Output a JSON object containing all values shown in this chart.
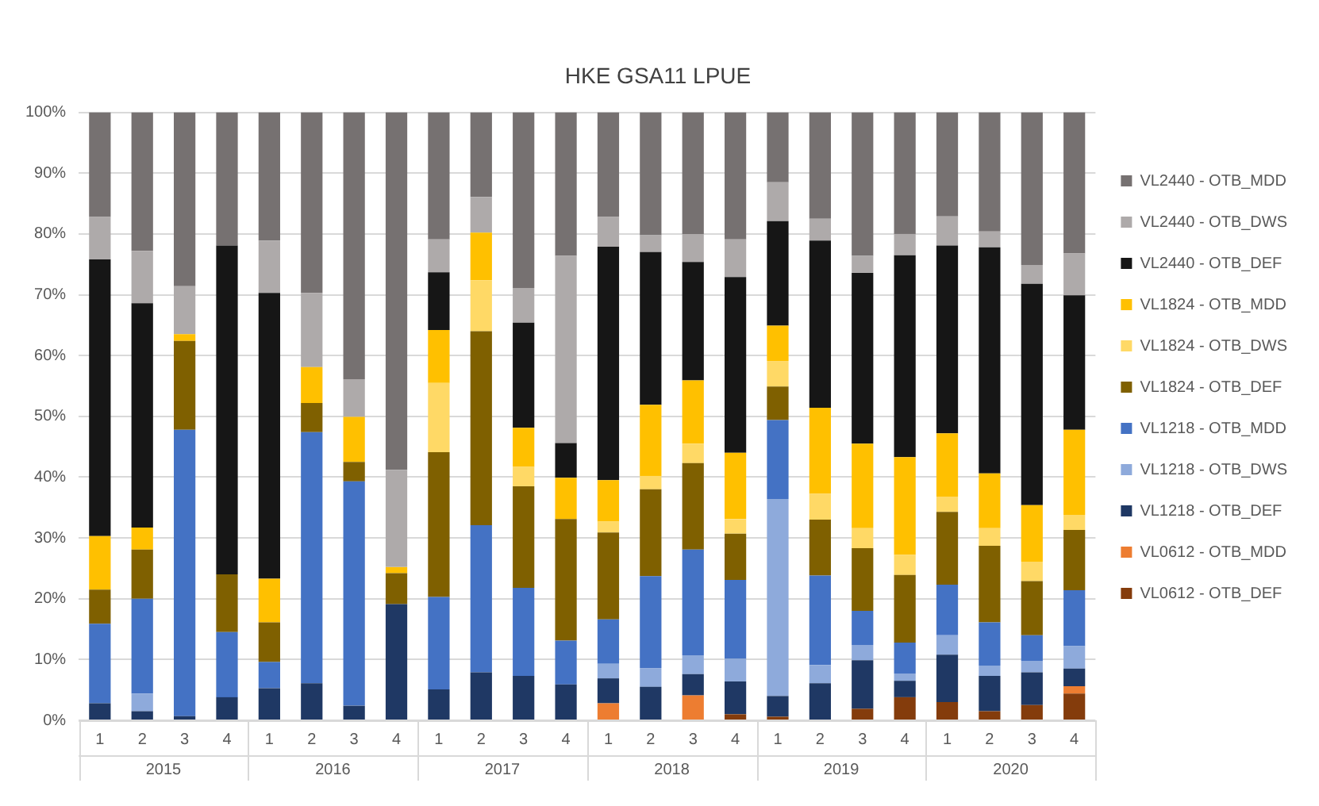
{
  "chart_data": {
    "type": "bar",
    "stacked": true,
    "title": "HKE GSA11 LPUE",
    "categories": [
      "1",
      "2",
      "3",
      "4",
      "1",
      "2",
      "3",
      "4",
      "1",
      "2",
      "3",
      "4",
      "1",
      "2",
      "3",
      "4",
      "1",
      "2",
      "3",
      "4",
      "1",
      "2",
      "3",
      "4"
    ],
    "annotations": [
      "2015",
      "2016",
      "2017",
      "2018",
      "2019",
      "2020"
    ],
    "ylim": [
      0,
      100
    ],
    "yticks": [
      {
        "value": 0,
        "label": "0%"
      },
      {
        "value": 10,
        "label": "10%"
      },
      {
        "value": 20,
        "label": "20%"
      },
      {
        "value": 30,
        "label": "30%"
      },
      {
        "value": 40,
        "label": "40%"
      },
      {
        "value": 50,
        "label": "50%"
      },
      {
        "value": 60,
        "label": "60%"
      },
      {
        "value": 70,
        "label": "70%"
      },
      {
        "value": 80,
        "label": "80%"
      },
      {
        "value": 90,
        "label": "90%"
      },
      {
        "value": 100,
        "label": "100%"
      }
    ],
    "grid": "y",
    "legend": "right",
    "series": [
      {
        "name": "VL0612 - OTB_DEF",
        "color": "#843c0c",
        "values": [
          0,
          0,
          0,
          0,
          0,
          0,
          0,
          0,
          0,
          0,
          0,
          0,
          0,
          0,
          0,
          1,
          0.6,
          0,
          1.9,
          3.8,
          3,
          1.5,
          2.5,
          4.4
        ]
      },
      {
        "name": "VL0612 - OTB_MDD",
        "color": "#ed7d31",
        "values": [
          0,
          0,
          0,
          0,
          0,
          0,
          0,
          0,
          0,
          0,
          0,
          0,
          2.8,
          0,
          4.1,
          0,
          0,
          0,
          0,
          0,
          0,
          0,
          0,
          1.2
        ]
      },
      {
        "name": "VL1218 - OTB_DEF",
        "color": "#1f3864",
        "values": [
          2.8,
          1.5,
          0.7,
          3.8,
          5.3,
          6.1,
          2.4,
          19.1,
          5.1,
          7.9,
          7.3,
          5.9,
          4.1,
          5.5,
          3.5,
          5.4,
          3.4,
          6.1,
          8,
          2.7,
          7.8,
          5.8,
          5.4,
          2.9
        ]
      },
      {
        "name": "VL1218 - OTB_DWS",
        "color": "#8eaadb",
        "values": [
          0,
          2.9,
          0,
          0,
          0,
          0,
          0,
          0,
          0,
          0,
          0,
          0,
          2.4,
          3.1,
          3.1,
          3.7,
          32.4,
          3,
          2.5,
          1.2,
          3.2,
          1.7,
          1.9,
          3.7
        ]
      },
      {
        "name": "VL1218 - OTB_MDD",
        "color": "#4472c4",
        "values": [
          13.1,
          15.6,
          47.1,
          10.7,
          4.3,
          41.3,
          36.9,
          0,
          15.2,
          24.2,
          14.5,
          7.2,
          7.3,
          15.1,
          17.4,
          13,
          13,
          14.7,
          5.6,
          5.1,
          8.3,
          7.1,
          4.2,
          9.2
        ]
      },
      {
        "name": "VL1824 - OTB_DEF",
        "color": "#7f6000",
        "values": [
          5.6,
          8.1,
          14.6,
          9.5,
          6.5,
          4.8,
          3.2,
          5.1,
          23.8,
          31.9,
          16.7,
          20,
          14.3,
          14.3,
          14.2,
          7.6,
          5.5,
          9.2,
          10.3,
          11.1,
          12,
          12.6,
          8.9,
          9.9
        ]
      },
      {
        "name": "VL1824 - OTB_DWS",
        "color": "#ffd966",
        "values": [
          0,
          0,
          0,
          0,
          0,
          0,
          0,
          0,
          11.4,
          8.4,
          3.2,
          0,
          1.8,
          2.2,
          3.2,
          2.4,
          4.2,
          4.3,
          3.3,
          3.3,
          2.5,
          2.9,
          3.2,
          2.5
        ]
      },
      {
        "name": "VL1824 - OTB_MDD",
        "color": "#ffc000",
        "values": [
          8.8,
          3.6,
          1.1,
          0,
          7.2,
          5.9,
          7.4,
          1,
          8.7,
          7.8,
          6.4,
          6.8,
          6.8,
          11.7,
          10.4,
          10.9,
          5.8,
          14.1,
          13.9,
          16.1,
          10.4,
          9,
          9.3,
          14
        ]
      },
      {
        "name": "VL2440 - OTB_DEF",
        "color": "#161616",
        "values": [
          45.5,
          36.9,
          0,
          54.1,
          47,
          0,
          0,
          0,
          9.5,
          0,
          17.3,
          5.7,
          38.4,
          25.1,
          19.5,
          28.9,
          17.2,
          27.5,
          28.1,
          33.2,
          30.9,
          37.2,
          36.4,
          22.1
        ]
      },
      {
        "name": "VL2440 - OTB_DWS",
        "color": "#aeaaaa",
        "values": [
          7,
          8.6,
          7.9,
          0,
          8.6,
          12.2,
          6.2,
          16,
          5.4,
          5.9,
          5.7,
          30.8,
          4.9,
          2.8,
          4.6,
          6.2,
          6.4,
          3.6,
          2.8,
          3.5,
          4.8,
          2.6,
          3.1,
          6.9
        ]
      },
      {
        "name": "VL2440 - OTB_MDD",
        "color": "#767171",
        "values": [
          17.2,
          22.8,
          28.6,
          21.9,
          21.1,
          29.7,
          43.9,
          58.8,
          20.9,
          13.9,
          28.9,
          23.6,
          17.2,
          20.2,
          20,
          20.9,
          11.5,
          17.5,
          23.6,
          20,
          17.1,
          19.6,
          25.1,
          23.2
        ]
      }
    ]
  }
}
